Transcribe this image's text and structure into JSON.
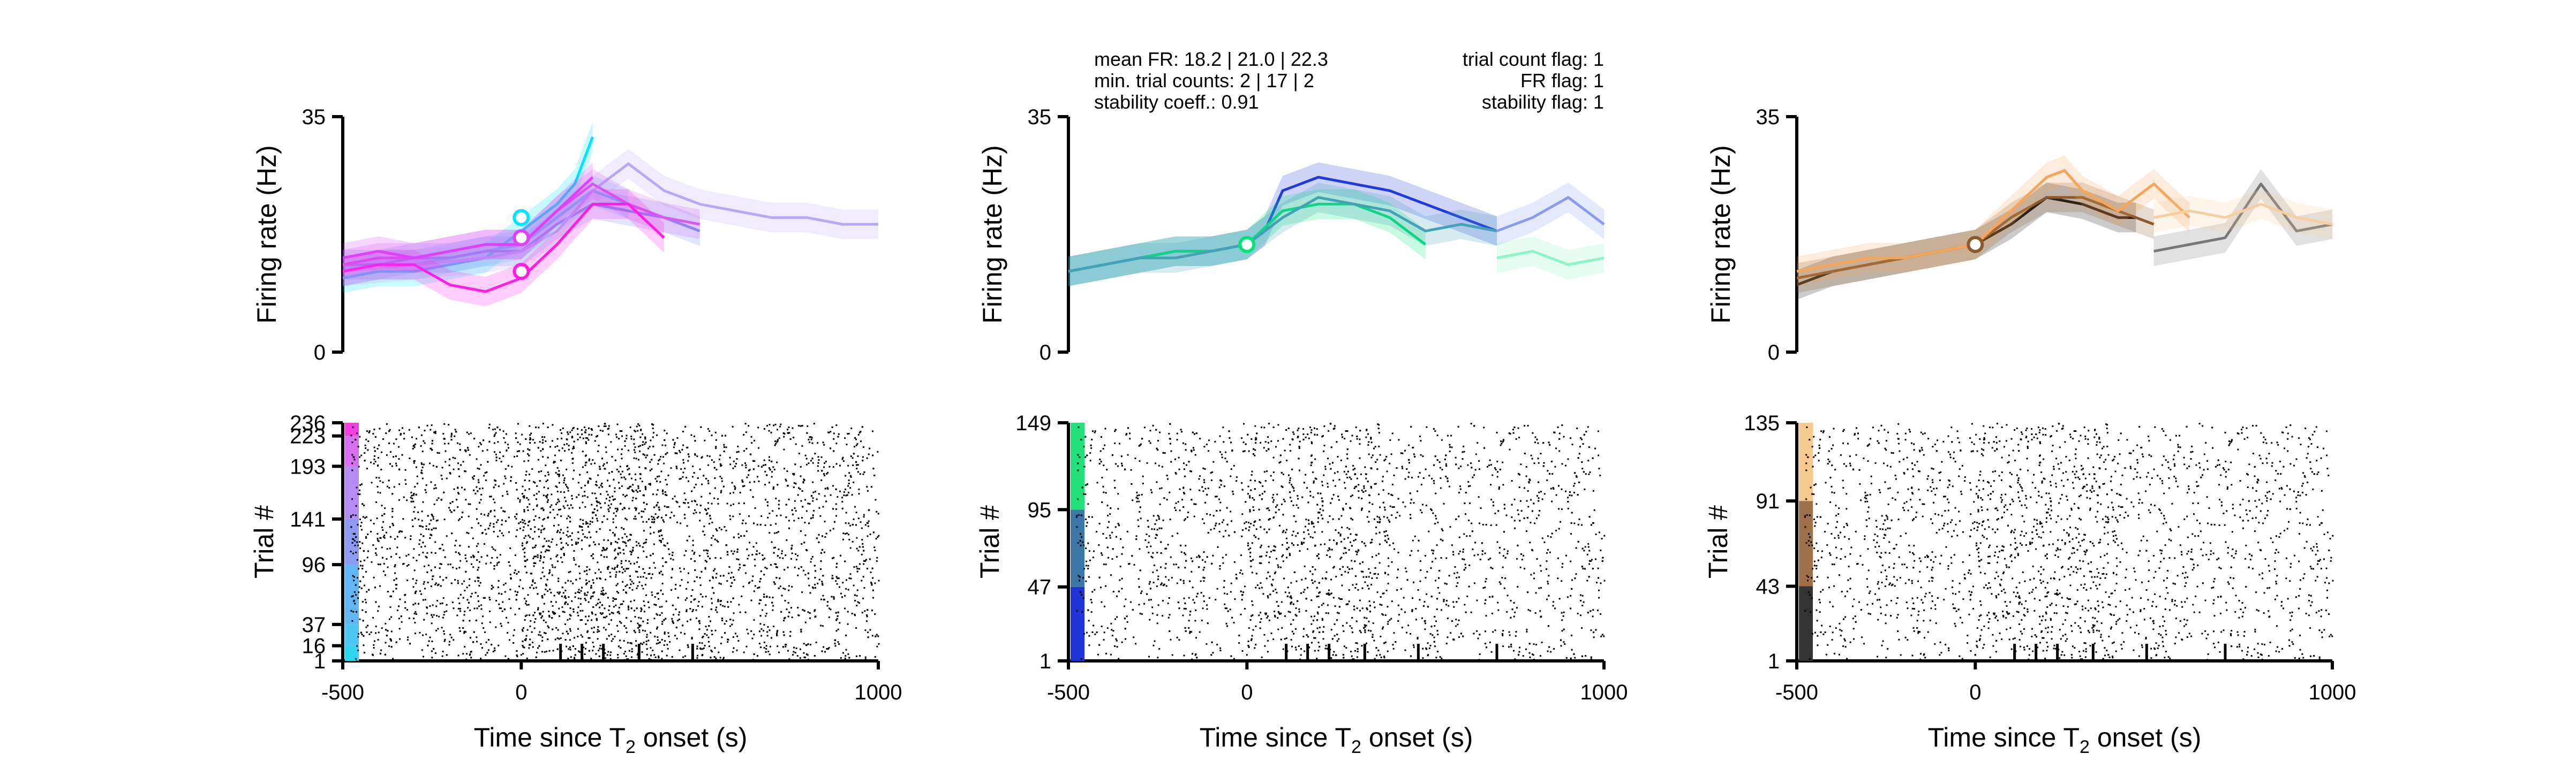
{
  "figure": {
    "xlabel": "Time since T",
    "xlabel_sub": "2",
    "xlabel_tail": " onset (s)",
    "xticklabels": [
      "-500",
      "0",
      "1000"
    ],
    "fr_ylabel": "Firing rate (Hz)",
    "fr_yticklabels": [
      "0",
      "35"
    ],
    "raster_ylabel": "Trial #"
  },
  "annotations": {
    "mean_fr": "mean FR: 18.2 | 21.0 | 22.3",
    "min_trial_counts": "min. trial counts: 2 | 17 | 2",
    "stability_coeff": "stability coeff.: 0.91",
    "trial_count_flag": "trial count flag: 1",
    "fr_flag": "FR flag: 1",
    "stability_flag": "stability flag: 1"
  },
  "chart_data": [
    {
      "type": "line",
      "panel": "left-psth",
      "xlim": [
        -500,
        1000
      ],
      "ylim": [
        0,
        35
      ],
      "ylabel": "Firing rate (Hz)",
      "alignment_marker_x": 0,
      "series": [
        {
          "color": "#00e5ff",
          "x": [
            -500,
            -400,
            -300,
            -200,
            -100,
            0,
            100,
            150,
            200
          ],
          "values": [
            11,
            12,
            12,
            13,
            14,
            18,
            22,
            25,
            32
          ]
        },
        {
          "color": "#4dd2ff",
          "x": [
            -500,
            -400,
            -300,
            -200,
            -100,
            0,
            100,
            200,
            300
          ],
          "values": [
            12,
            13,
            13,
            14,
            15,
            16,
            20,
            24,
            22
          ]
        },
        {
          "color": "#7b8ff0",
          "x": [
            -500,
            -400,
            -300,
            -200,
            -100,
            0,
            100,
            200,
            300,
            400,
            500
          ],
          "values": [
            13,
            13,
            14,
            14,
            15,
            15,
            19,
            22,
            21,
            20,
            18
          ]
        },
        {
          "color": "#b9a8f5",
          "x": [
            -500,
            -300,
            -100,
            0,
            100,
            200,
            300,
            400,
            500,
            600,
            700,
            800,
            900,
            1000
          ],
          "values": [
            12,
            13,
            14,
            15,
            18,
            24,
            28,
            24,
            22,
            21,
            20,
            20,
            19,
            19
          ]
        },
        {
          "color": "#d25cf0",
          "x": [
            -500,
            -400,
            -300,
            -200,
            -100,
            0,
            100,
            200,
            300,
            400,
            500
          ],
          "values": [
            13,
            14,
            14,
            15,
            16,
            16,
            21,
            25,
            22,
            20,
            19
          ]
        },
        {
          "color": "#ff1ee8",
          "x": [
            -500,
            -400,
            -300,
            -200,
            -100,
            0,
            100,
            200,
            300,
            400
          ],
          "values": [
            12,
            13,
            13,
            10,
            9,
            11,
            16,
            22,
            22,
            17
          ]
        },
        {
          "color": "#e040fb",
          "x": [
            -500,
            -400,
            -300,
            -200,
            -100,
            0,
            100,
            200
          ],
          "values": [
            14,
            15,
            14,
            15,
            16,
            16,
            21,
            26
          ]
        }
      ],
      "markers": [
        {
          "x": 0,
          "y": 20,
          "color": "#00e5ff"
        },
        {
          "x": 0,
          "y": 17,
          "color": "#e040fb"
        },
        {
          "x": 0,
          "y": 12,
          "color": "#ff1ee8"
        }
      ]
    },
    {
      "type": "line",
      "panel": "middle-psth",
      "xlim": [
        -500,
        1000
      ],
      "ylim": [
        0,
        35
      ],
      "ylabel": "Firing rate (Hz)",
      "alignment_marker_x": 0,
      "series": [
        {
          "color": "#1e3be0",
          "x": [
            -500,
            -400,
            -300,
            -200,
            -100,
            0,
            50,
            100,
            200,
            300,
            400,
            500,
            600,
            700
          ],
          "values": [
            12,
            13,
            14,
            15,
            15,
            16,
            18,
            24,
            26,
            25,
            24,
            22,
            20,
            18
          ]
        },
        {
          "color": "#00e676",
          "x": [
            -500,
            -400,
            -300,
            -200,
            -100,
            0,
            100,
            200,
            300,
            400,
            500
          ],
          "values": [
            12,
            13,
            14,
            15,
            15,
            16,
            21,
            22,
            22,
            20,
            16
          ]
        },
        {
          "color": "#46a0b8",
          "x": [
            -500,
            -400,
            -300,
            -200,
            -100,
            0,
            100,
            200,
            300,
            400,
            500,
            600,
            700
          ],
          "values": [
            12,
            13,
            14,
            14,
            15,
            16,
            20,
            23,
            22,
            21,
            18,
            19,
            18
          ]
        },
        {
          "color": "#8a9cf0",
          "x": [
            700,
            800,
            900,
            1000
          ],
          "values": [
            18,
            20,
            23,
            19
          ]
        },
        {
          "color": "#8ef5c6",
          "x": [
            700,
            800,
            900,
            1000
          ],
          "values": [
            14,
            15,
            13,
            14
          ]
        }
      ],
      "markers": [
        {
          "x": 0,
          "y": 16,
          "color": "#00e676"
        }
      ]
    },
    {
      "type": "line",
      "panel": "right-psth",
      "xlim": [
        -500,
        1000
      ],
      "ylim": [
        0,
        35
      ],
      "ylabel": "Firing rate (Hz)",
      "alignment_marker_x": 0,
      "series": [
        {
          "color": "#111111",
          "x": [
            -500,
            -400,
            -300,
            -200,
            -100,
            0,
            100,
            200,
            300,
            400,
            450
          ],
          "values": [
            10,
            12,
            13,
            14,
            15,
            16,
            19,
            23,
            22,
            20,
            20
          ]
        },
        {
          "color": "#8b5a2b",
          "x": [
            -500,
            -400,
            -300,
            -200,
            -100,
            0,
            100,
            200,
            300,
            400,
            500
          ],
          "values": [
            11,
            12,
            13,
            14,
            15,
            16,
            20,
            23,
            23,
            21,
            19
          ]
        },
        {
          "color": "#f5a65b",
          "x": [
            -500,
            -400,
            -300,
            -200,
            -100,
            0,
            100,
            200,
            250,
            300,
            400,
            500,
            600
          ],
          "values": [
            12,
            13,
            14,
            14,
            15,
            16,
            21,
            26,
            27,
            24,
            21,
            25,
            20
          ]
        },
        {
          "color": "#777777",
          "x": [
            500,
            600,
            700,
            800,
            900,
            1000
          ],
          "values": [
            15,
            16,
            17,
            25,
            18,
            19
          ]
        },
        {
          "color": "#f5cfa0",
          "x": [
            500,
            600,
            700,
            800,
            900,
            1000
          ],
          "values": [
            20,
            21,
            20,
            22,
            20,
            19
          ]
        }
      ],
      "markers": [
        {
          "x": 0,
          "y": 16,
          "color": "#8b5a2b"
        }
      ]
    },
    {
      "type": "scatter",
      "panel": "left-raster",
      "xlim": [
        -500,
        1000
      ],
      "ylim": [
        1,
        236
      ],
      "ylabel": "Trial #",
      "yticks": [
        1,
        16,
        37,
        96,
        141,
        193,
        223,
        236
      ],
      "yticklabels": [
        "1",
        "16",
        "37",
        "96",
        "141",
        "193",
        "223",
        "236"
      ],
      "condition_bar": [
        {
          "from": 1,
          "to": 16,
          "color": "#30d5f0"
        },
        {
          "from": 16,
          "to": 37,
          "color": "#4dc8f5"
        },
        {
          "from": 37,
          "to": 96,
          "color": "#5fb8f5"
        },
        {
          "from": 96,
          "to": 141,
          "color": "#8c9cf5"
        },
        {
          "from": 141,
          "to": 193,
          "color": "#b58cf5"
        },
        {
          "from": 193,
          "to": 223,
          "color": "#d86ff0"
        },
        {
          "from": 223,
          "to": 236,
          "color": "#f43fe0"
        }
      ],
      "event_ticks_x": [
        110,
        170,
        230,
        330,
        480
      ]
    },
    {
      "type": "scatter",
      "panel": "middle-raster",
      "xlim": [
        -500,
        1000
      ],
      "ylim": [
        1,
        149
      ],
      "ylabel": "Trial #",
      "yticks": [
        1,
        47,
        95,
        149
      ],
      "yticklabels": [
        "1",
        "47",
        "95",
        "149"
      ],
      "condition_bar": [
        {
          "from": 1,
          "to": 47,
          "color": "#2233d8"
        },
        {
          "from": 47,
          "to": 95,
          "color": "#3b78a8"
        },
        {
          "from": 95,
          "to": 149,
          "color": "#22e07a"
        }
      ],
      "event_ticks_x": [
        110,
        170,
        230,
        330,
        480,
        700
      ]
    },
    {
      "type": "scatter",
      "panel": "right-raster",
      "xlim": [
        -500,
        1000
      ],
      "ylim": [
        1,
        135
      ],
      "ylabel": "Trial #",
      "yticks": [
        1,
        43,
        91,
        135
      ],
      "yticklabels": [
        "1",
        "43",
        "91",
        "135"
      ],
      "condition_bar": [
        {
          "from": 1,
          "to": 43,
          "color": "#333333"
        },
        {
          "from": 43,
          "to": 91,
          "color": "#a0704a"
        },
        {
          "from": 91,
          "to": 135,
          "color": "#f5c890"
        }
      ],
      "event_ticks_x": [
        110,
        170,
        230,
        330,
        480,
        700
      ]
    }
  ]
}
